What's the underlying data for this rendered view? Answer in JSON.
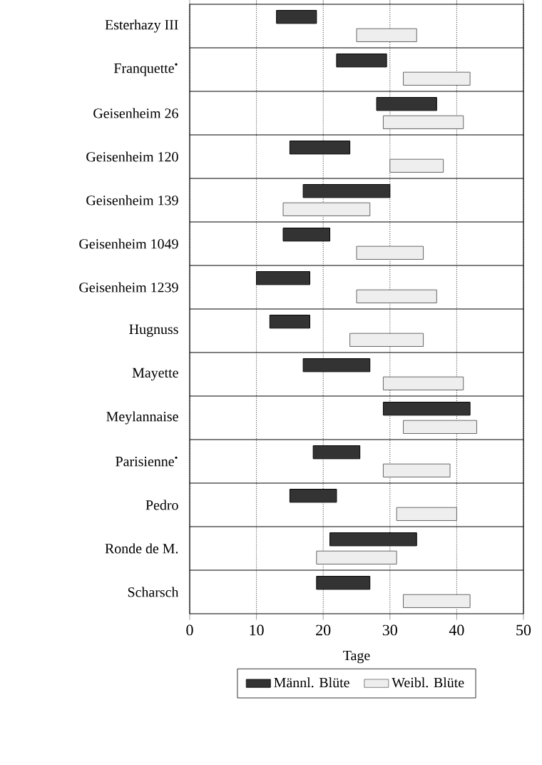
{
  "chart_data": {
    "type": "bar",
    "orientation": "horizontal",
    "xlabel": "Tage",
    "categories": [
      "Esterhazy III",
      "Franquette$^{•}$",
      "Geisenheim 26",
      "Geisenheim 120",
      "Geisenheim 139",
      "Geisenheim 1049",
      "Geisenheim 1239",
      "Hugnuss",
      "Mayette",
      "Meylannaise",
      "Parisienne$^{•}$",
      "Pedro",
      "Ronde de M.",
      "Scharsch"
    ],
    "series": [
      {
        "name": "Männl. Blüte",
        "color": "#333333",
        "base": [
          13,
          22,
          28,
          15,
          17,
          14,
          10,
          12,
          17,
          29,
          18.5,
          15,
          21,
          19
        ],
        "values": [
          6,
          7.5,
          9,
          9,
          13,
          7,
          8,
          6,
          10,
          13,
          7,
          7,
          13,
          8
        ]
      },
      {
        "name": "Weibl. Blüte",
        "color": "#eeeeee",
        "base": [
          25,
          32,
          29,
          30,
          14,
          25,
          25,
          24,
          29,
          32,
          29,
          31,
          19,
          32
        ],
        "values": [
          9,
          10,
          12,
          8,
          13,
          10,
          12,
          11,
          12,
          11,
          10,
          9,
          12,
          10
        ]
      }
    ],
    "xlim": [
      0,
      50
    ],
    "xticks": [
      0,
      10,
      20,
      30,
      40,
      50
    ],
    "grid": "x",
    "legend": "bottom"
  }
}
